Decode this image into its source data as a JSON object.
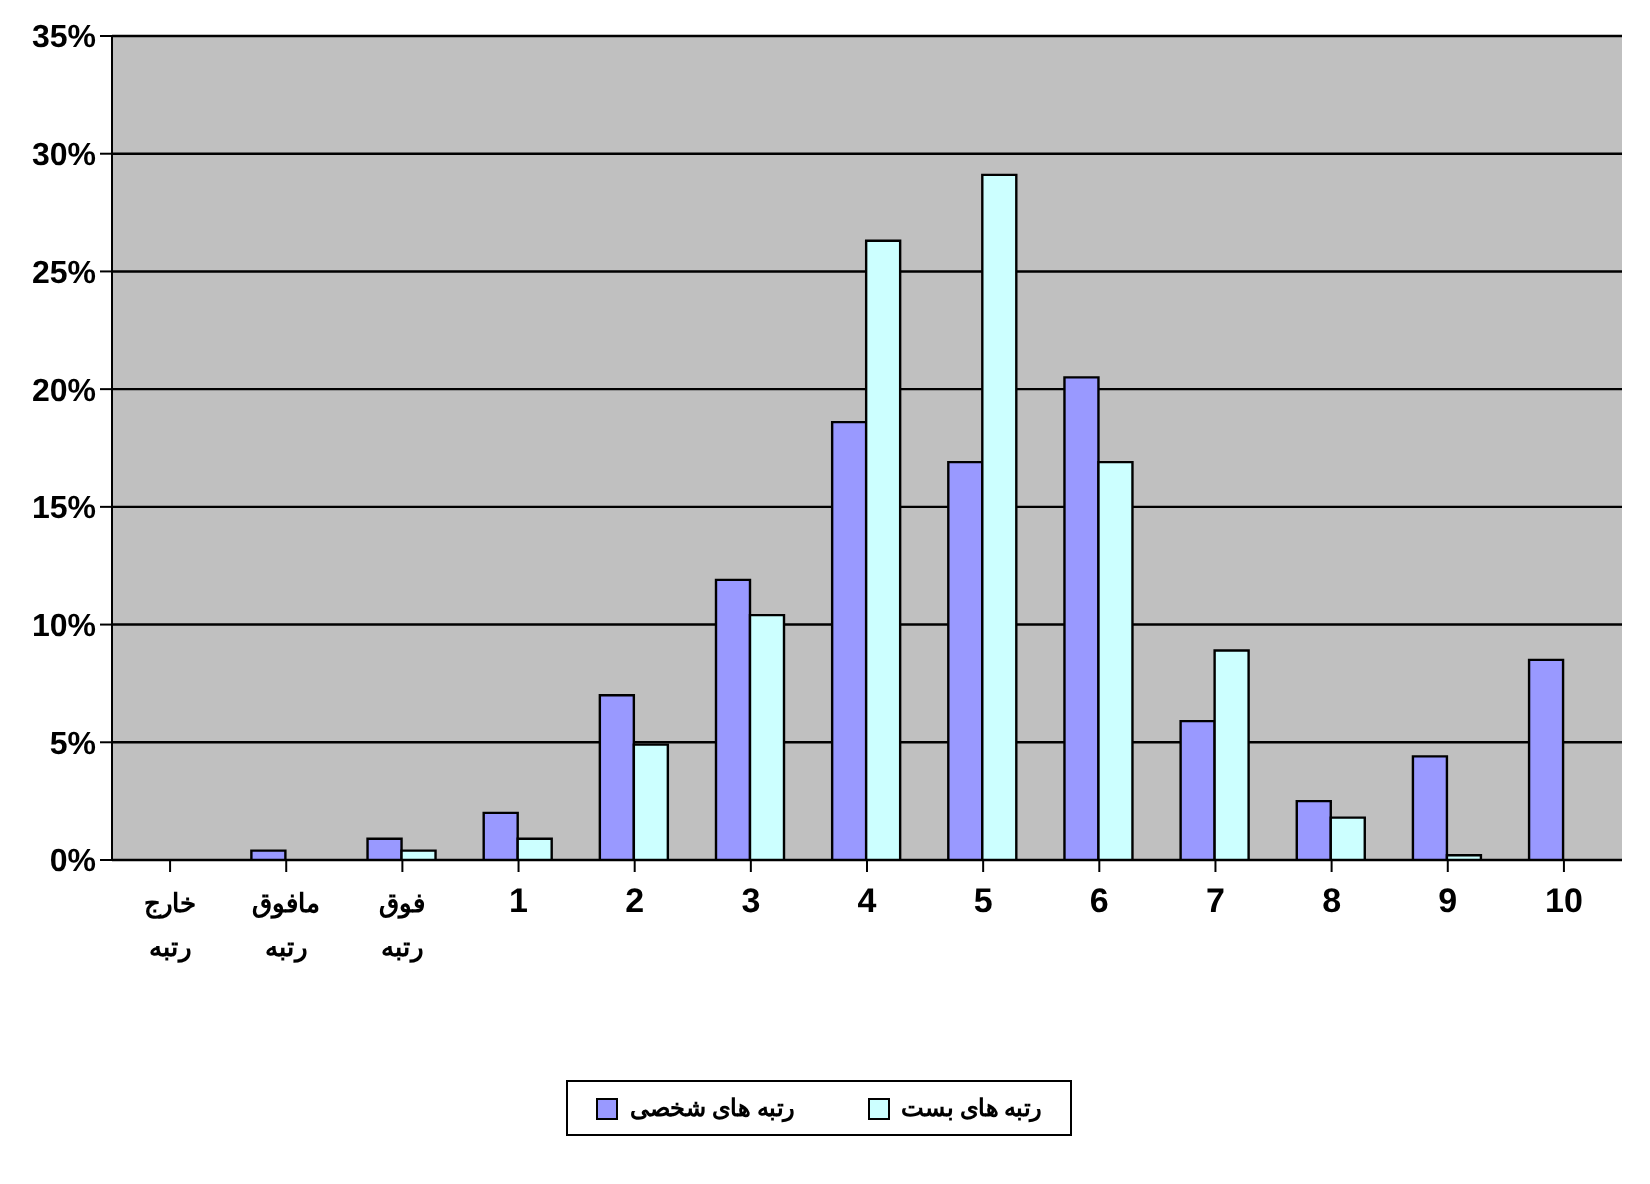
{
  "chart_data": {
    "type": "bar",
    "categories": [
      "خارج رتبه",
      "مافوق رتبه",
      "فوق رتبه",
      "1",
      "2",
      "3",
      "4",
      "5",
      "6",
      "7",
      "8",
      "9",
      "10"
    ],
    "series": [
      {
        "name": "رتبه های شخصی",
        "color": "#9999ff",
        "values": [
          0,
          0.4,
          0.9,
          2.0,
          7.0,
          11.9,
          18.6,
          16.9,
          20.5,
          5.9,
          2.5,
          4.4,
          8.5
        ]
      },
      {
        "name": "رتبه های بست",
        "color": "#ccffff",
        "values": [
          0,
          0,
          0.4,
          0.9,
          4.9,
          10.4,
          26.3,
          29.1,
          16.9,
          8.9,
          1.8,
          0.2,
          0
        ]
      }
    ],
    "ylim": [
      0,
      35
    ],
    "yticks": [
      {
        "value": 0,
        "label": "0%"
      },
      {
        "value": 5,
        "label": "5%"
      },
      {
        "value": 10,
        "label": "10%"
      },
      {
        "value": 15,
        "label": "15%"
      },
      {
        "value": 20,
        "label": "20%"
      },
      {
        "value": 25,
        "label": "25%"
      },
      {
        "value": 30,
        "label": "30%"
      },
      {
        "value": 35,
        "label": "35%"
      }
    ],
    "grid": "y",
    "legend": "bottom"
  }
}
